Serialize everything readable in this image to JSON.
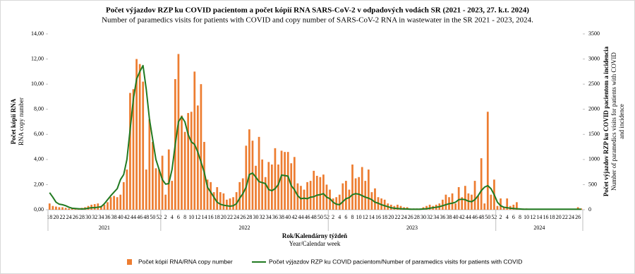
{
  "chart_data": {
    "type": "bar-line",
    "title": "Počet výjazdov RZP ku COVID pacientom a počet kópií RNA  SARS-CoV-2 v odpadových vodách SR (2021 - 2023, 27. k.t. 2024)",
    "subtitle": "Number of paramedics visits for patients with COVID and copy number of SARS-CoV-2 RNA in wastewater in the SR 2021 - 2023, 2024.",
    "y_axis_title": "Počet kópií RNA",
    "y_axis_title_en": "RNA copy number",
    "y2_axis_title": "Počet výjazdov RZP ku COVID pacientom a incidencia",
    "y2_axis_title_en": [
      "Number of paramedics visits for patients with COVID",
      "and incidence"
    ],
    "x_axis_title": "Rok/Kalendárny týždeň",
    "x_axis_title_en": "Year/Calendar week",
    "years": [
      "2021",
      "2022",
      "2023",
      "2024"
    ],
    "categories": [
      "18",
      null,
      "20",
      null,
      "22",
      null,
      "24",
      null,
      "26",
      null,
      "28",
      null,
      "30",
      null,
      "32",
      null,
      "34",
      null,
      "36",
      null,
      "38",
      null,
      "40",
      null,
      "42",
      null,
      "44",
      null,
      "46",
      null,
      "48",
      null,
      "50",
      null,
      "52",
      null,
      "2",
      null,
      "4",
      null,
      "6",
      null,
      "8",
      null,
      "10",
      null,
      "12",
      null,
      "14",
      null,
      "16",
      null,
      "18",
      null,
      "20",
      null,
      "22",
      null,
      "24",
      null,
      "26",
      null,
      "28",
      null,
      "30",
      null,
      "32",
      null,
      "34",
      null,
      "36",
      null,
      "38",
      null,
      "40",
      null,
      "42",
      null,
      "44",
      null,
      "46",
      null,
      "48",
      null,
      "50",
      null,
      "52",
      null,
      "2",
      null,
      "4",
      null,
      "6",
      null,
      "8",
      null,
      "10",
      null,
      "12",
      null,
      "14",
      null,
      "16",
      null,
      "18",
      null,
      "20",
      null,
      "22",
      null,
      "24",
      null,
      "26",
      null,
      "28",
      null,
      "30",
      null,
      "32",
      null,
      "34",
      null,
      "36",
      null,
      "38",
      null,
      "40",
      null,
      "42",
      null,
      "44",
      null,
      "46",
      null,
      "48",
      null,
      "50",
      null,
      "52",
      null,
      "2",
      null,
      "4",
      null,
      "6",
      null,
      "8",
      null,
      "10",
      null,
      "12",
      null,
      "14",
      null,
      "16",
      null,
      "18",
      null,
      "20",
      null,
      "22",
      null,
      "24",
      null,
      "26",
      null
    ],
    "series": [
      {
        "name": "Počet kópií RNA/RNA copy number",
        "type": "bar",
        "color": "#ed7d31",
        "values": [
          0.5,
          0.3,
          0.25,
          0.2,
          0.2,
          0.15,
          0.1,
          0.1,
          0.1,
          0.1,
          0.15,
          0.2,
          0.3,
          0.4,
          0.45,
          0.5,
          0.3,
          0.4,
          0.6,
          1.0,
          1.1,
          1.0,
          1.2,
          2.2,
          3.2,
          9.3,
          9.6,
          12.0,
          11.6,
          10.2,
          3.2,
          7.2,
          5.4,
          3.3,
          3.2,
          4.3,
          1.2,
          4.8,
          2.3,
          10.4,
          12.4,
          7.5,
          6.2,
          7.7,
          7.8,
          11.0,
          8.3,
          10.0,
          5.4,
          2.4,
          2.2,
          1.4,
          1.8,
          1.4,
          1.3,
          0.8,
          0.9,
          1.0,
          1.4,
          2.2,
          2.5,
          5.1,
          6.4,
          5.5,
          3.5,
          5.8,
          4.0,
          2.6,
          3.8,
          3.6,
          4.9,
          3.6,
          4.7,
          4.6,
          4.6,
          3.7,
          4.2,
          2.1,
          1.9,
          1.6,
          2.2,
          2.3,
          3.1,
          2.7,
          2.6,
          2.8,
          2.0,
          1.6,
          0.9,
          1.0,
          1.2,
          2.1,
          2.3,
          1.6,
          3.6,
          2.5,
          2.6,
          3.4,
          2.3,
          3.2,
          1.4,
          1.7,
          1.0,
          0.9,
          0.8,
          0.5,
          0.4,
          0.3,
          0.4,
          0.3,
          0.2,
          0.2,
          0.1,
          0.1,
          0.1,
          0.1,
          0.2,
          0.3,
          0.4,
          0.3,
          0.4,
          0.5,
          0.8,
          1.2,
          1.0,
          1.3,
          0.5,
          1.8,
          1.0,
          1.9,
          1.3,
          1.2,
          2.3,
          1.1,
          4.1,
          0.5,
          7.8,
          1.2,
          2.4,
          0.3,
          0.9,
          0.2,
          0.9,
          0.3,
          0.4,
          0.6,
          0.1,
          0.1,
          0.1,
          0.05,
          0.05,
          0.05,
          0.05,
          0.05,
          0.05,
          0.05,
          0.05,
          0.05,
          0.05,
          0.05,
          0.05,
          0.05,
          0.05,
          0.05,
          0.2,
          0.1
        ]
      },
      {
        "name": "Počet výjazdov RZP ku COVID pacientom/Number of paramedics visits for patients with COVID",
        "type": "line",
        "axis": "y2",
        "color": "#217a21",
        "values": [
          340,
          250,
          150,
          110,
          100,
          80,
          50,
          30,
          25,
          20,
          15,
          20,
          30,
          40,
          40,
          50,
          60,
          120,
          200,
          280,
          350,
          420,
          600,
          700,
          1000,
          1600,
          2200,
          2600,
          2750,
          2870,
          2400,
          1800,
          1400,
          1000,
          800,
          600,
          510,
          520,
          800,
          1300,
          1750,
          1850,
          1750,
          1500,
          1350,
          1300,
          1150,
          950,
          750,
          450,
          350,
          250,
          150,
          110,
          90,
          80,
          70,
          80,
          120,
          230,
          320,
          450,
          700,
          730,
          650,
          560,
          540,
          520,
          400,
          380,
          420,
          500,
          690,
          680,
          670,
          480,
          400,
          280,
          220,
          230,
          220,
          250,
          260,
          290,
          300,
          320,
          250,
          220,
          150,
          110,
          100,
          160,
          220,
          240,
          300,
          320,
          310,
          280,
          250,
          230,
          200,
          150,
          130,
          100,
          80,
          60,
          40,
          30,
          25,
          20,
          15,
          15,
          10,
          10,
          10,
          10,
          15,
          20,
          30,
          40,
          50,
          60,
          80,
          100,
          120,
          130,
          150,
          200,
          210,
          200,
          170,
          160,
          200,
          280,
          380,
          450,
          480,
          420,
          300,
          150,
          80,
          50,
          40,
          30,
          25,
          20,
          15,
          10,
          10,
          10,
          10,
          10,
          10,
          10,
          10,
          10,
          10,
          10,
          10,
          10,
          10,
          10,
          10,
          10,
          10,
          10
        ]
      }
    ],
    "ylim": [
      0,
      14
    ],
    "yticks": [
      {
        "value": 0,
        "label": "0,00"
      },
      {
        "value": 2,
        "label": "2,00"
      },
      {
        "value": 4,
        "label": "4,00"
      },
      {
        "value": 6,
        "label": "6,00"
      },
      {
        "value": 8,
        "label": "8,00"
      },
      {
        "value": 10,
        "label": "10,00"
      },
      {
        "value": 12,
        "label": "12,00"
      },
      {
        "value": 14,
        "label": "14,00"
      }
    ],
    "y2lim": [
      0,
      3500
    ],
    "y2ticks": [
      0,
      500,
      1000,
      1500,
      2000,
      2500,
      3000,
      3500
    ],
    "grid": false,
    "legend": "bottom"
  }
}
